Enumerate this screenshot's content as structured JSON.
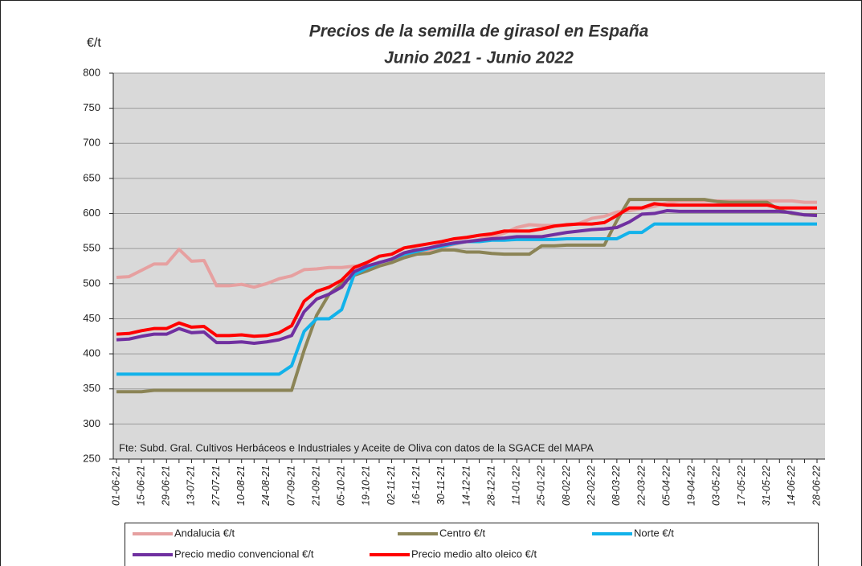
{
  "chart_data": {
    "type": "line",
    "title": "Precios de la semilla de girasol en España",
    "subtitle": "Junio 2021 - Junio 2022",
    "y_label": "€/t",
    "annotation": "Fte: Subd. Gral. Cultivos Herbáceos e Industriales y Aceite de Oliva con datos de la SGACE del MAPA",
    "categories": [
      "01-06-21",
      null,
      "15-06-21",
      null,
      "29-06-21",
      null,
      "13-07-21",
      null,
      "27-07-21",
      null,
      "10-08-21",
      null,
      "24-08-21",
      null,
      "07-09-21",
      null,
      "21-09-21",
      null,
      "05-10-21",
      null,
      "19-10-21",
      null,
      "02-11-21",
      null,
      "16-11-21",
      null,
      "30-11-21",
      null,
      "14-12-21",
      null,
      "28-12-21",
      null,
      "11-01-22",
      null,
      "25-01-22",
      null,
      "08-02-22",
      null,
      "22-02-22",
      null,
      "08-03-22",
      null,
      "22-03-22",
      null,
      "05-04-22",
      null,
      "19-04-22",
      null,
      "03-05-22",
      null,
      "17-05-22",
      null,
      "31-05-22",
      null,
      "14-06-22",
      null,
      "28-06-22"
    ],
    "ylim": [
      250,
      800
    ],
    "yticks": [
      250,
      300,
      350,
      400,
      450,
      500,
      550,
      600,
      650,
      700,
      750,
      800
    ],
    "grid": true,
    "series": [
      {
        "name": "Andalucia €/t",
        "color": "#e6a0a0",
        "values": [
          509,
          510,
          519,
          528,
          528,
          549,
          532,
          533,
          497,
          497,
          499,
          495,
          500,
          507,
          511,
          520,
          521,
          523,
          523,
          525,
          525,
          530,
          535,
          540,
          545,
          548,
          552,
          556,
          560,
          563,
          567,
          572,
          580,
          584,
          583,
          583,
          583,
          586,
          593,
          596,
          602,
          604,
          607,
          610,
          615,
          618,
          618,
          618,
          618,
          618,
          618,
          618,
          618,
          618,
          618,
          616,
          616
        ]
      },
      {
        "name": "Centro €/t",
        "color": "#8b8456",
        "values": [
          346,
          346,
          346,
          348,
          348,
          348,
          348,
          348,
          348,
          348,
          348,
          348,
          348,
          348,
          348,
          405,
          455,
          485,
          500,
          512,
          518,
          525,
          530,
          537,
          542,
          543,
          548,
          548,
          545,
          545,
          543,
          542,
          542,
          542,
          554,
          554,
          555,
          555,
          555,
          555,
          590,
          620,
          620,
          620,
          620,
          620,
          620,
          620,
          617,
          616,
          616,
          616,
          616,
          605,
          600,
          598,
          598
        ]
      },
      {
        "name": "Norte €/t",
        "color": "#12b2ea",
        "values": [
          371,
          371,
          371,
          371,
          371,
          371,
          371,
          371,
          371,
          371,
          371,
          371,
          371,
          371,
          383,
          432,
          450,
          450,
          463,
          513,
          522,
          530,
          535,
          542,
          546,
          550,
          553,
          557,
          560,
          560,
          562,
          562,
          563,
          563,
          563,
          563,
          564,
          564,
          564,
          564,
          564,
          573,
          573,
          585,
          585,
          585,
          585,
          585,
          585,
          585,
          585,
          585,
          585,
          585,
          585,
          585,
          585
        ]
      },
      {
        "name": "Precio medio convencional €/t",
        "color": "#7030a0",
        "values": [
          420,
          421,
          425,
          428,
          428,
          436,
          430,
          431,
          416,
          416,
          417,
          415,
          417,
          420,
          426,
          460,
          478,
          485,
          495,
          517,
          525,
          530,
          535,
          544,
          548,
          551,
          555,
          558,
          560,
          562,
          564,
          565,
          567,
          567,
          567,
          570,
          573,
          575,
          577,
          578,
          580,
          588,
          599,
          600,
          604,
          603,
          603,
          603,
          603,
          603,
          603,
          603,
          603,
          603,
          601,
          598,
          597
        ]
      },
      {
        "name": "Precio medio alto oleico €/t",
        "color": "#ff0000",
        "values": [
          428,
          429,
          433,
          436,
          436,
          444,
          438,
          439,
          426,
          426,
          427,
          425,
          426,
          430,
          440,
          475,
          489,
          495,
          505,
          523,
          530,
          539,
          542,
          551,
          554,
          557,
          560,
          564,
          566,
          569,
          571,
          575,
          575,
          575,
          578,
          582,
          584,
          585,
          585,
          587,
          597,
          608,
          608,
          614,
          612,
          612,
          612,
          612,
          612,
          612,
          612,
          612,
          612,
          608,
          608,
          608,
          608
        ]
      }
    ]
  }
}
